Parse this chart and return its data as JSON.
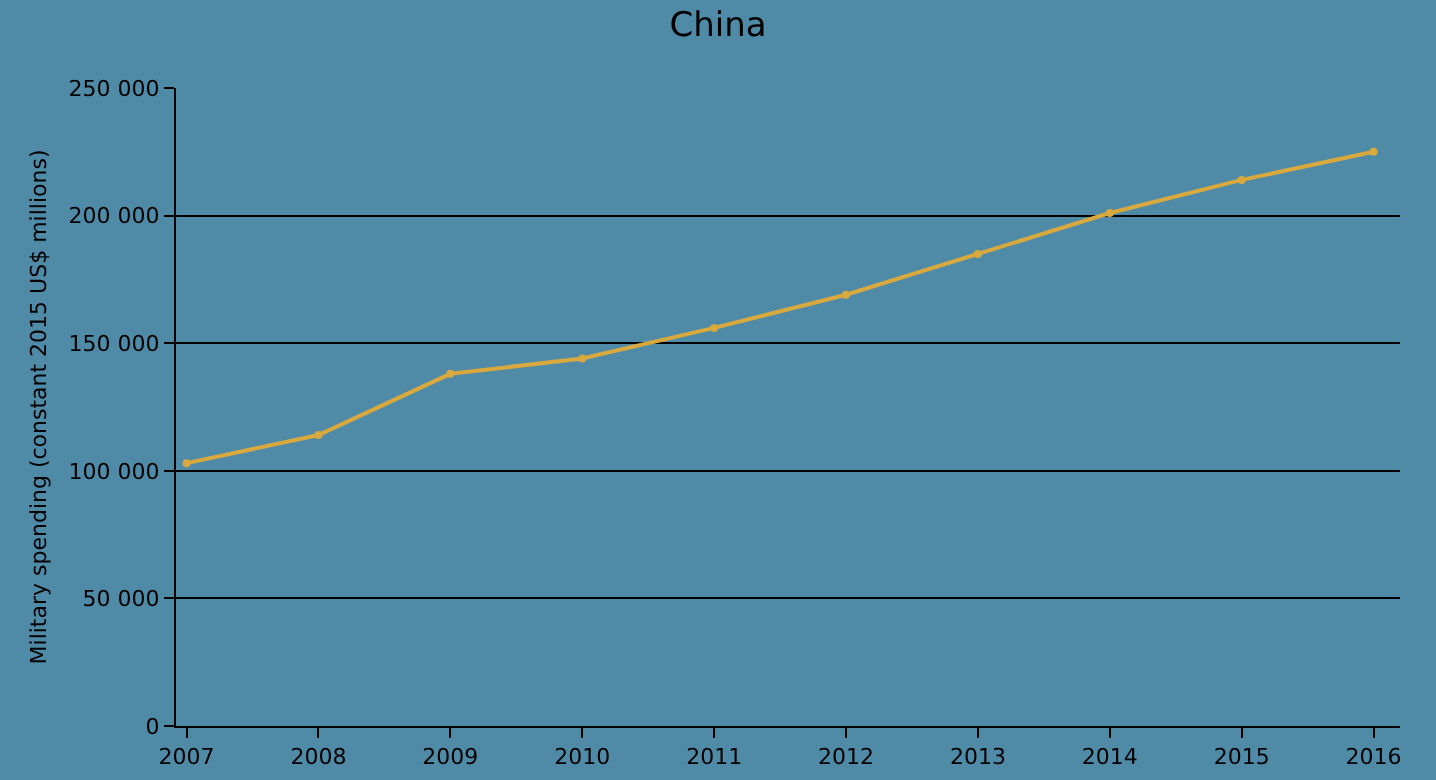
{
  "chart_data": {
    "type": "line",
    "title": "China",
    "ylabel": "Military spending (constant 2015 US$ millions)",
    "x": [
      2007,
      2008,
      2009,
      2010,
      2011,
      2012,
      2013,
      2014,
      2015,
      2016
    ],
    "series": [
      {
        "color": "#d9a93e",
        "values": [
          103000,
          114000,
          138000,
          144000,
          156000,
          169000,
          185000,
          201000,
          214000,
          225000
        ]
      }
    ],
    "xlim": [
      2006.92,
      2016.2
    ],
    "xticks": [
      2007,
      2008,
      2009,
      2010,
      2011,
      2012,
      2013,
      2014,
      2015,
      2016
    ],
    "ylim": [
      0,
      250000
    ],
    "yticks": [
      0,
      {
        "value": 50000,
        "label": "50 000"
      },
      {
        "value": 100000,
        "label": "100 000"
      },
      {
        "value": 150000,
        "label": "150 000"
      },
      {
        "value": 200000,
        "label": "200 000"
      },
      {
        "value": 250000,
        "label": "250 000"
      }
    ],
    "grid": "y",
    "legend": false,
    "marker": "circle",
    "line_style": "solid"
  }
}
